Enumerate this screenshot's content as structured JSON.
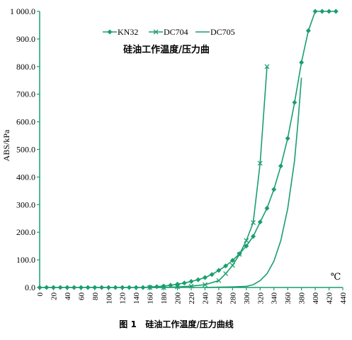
{
  "chart_data": {
    "type": "line",
    "title": "硅油工作温度/压力曲",
    "caption": "图 1   硅油工作温度/压力曲线",
    "ylabel": "ABS/kPa",
    "xunit": "℃",
    "xlim": [
      0,
      440
    ],
    "ylim": [
      0,
      1000
    ],
    "color": "#1a9e6e",
    "x_ticks": [
      0,
      20,
      40,
      60,
      80,
      100,
      120,
      140,
      160,
      180,
      200,
      220,
      240,
      260,
      280,
      300,
      320,
      340,
      360,
      380,
      400,
      420,
      440
    ],
    "y_ticks": [
      "0.0",
      "100.0",
      "200.0",
      "300.0",
      "400.0",
      "500.0",
      "600.0",
      "700.0",
      "800.0",
      "900.0",
      "1 000.0"
    ],
    "y_tick_values": [
      0,
      100,
      200,
      300,
      400,
      500,
      600,
      700,
      800,
      900,
      1000
    ],
    "legend_position": "top-center",
    "series": [
      {
        "name": "KN32",
        "marker": "diamond",
        "x": [
          0,
          10,
          20,
          30,
          40,
          50,
          60,
          70,
          80,
          90,
          100,
          110,
          120,
          130,
          140,
          150,
          160,
          170,
          180,
          190,
          200,
          210,
          220,
          230,
          240,
          250,
          260,
          270,
          280,
          290,
          300,
          310,
          320,
          330,
          340,
          350,
          360,
          370,
          380,
          390,
          400,
          410,
          420,
          430
        ],
        "y": [
          0,
          0,
          0,
          0,
          0,
          0,
          0,
          0,
          0,
          0,
          0,
          0,
          0,
          0,
          0,
          0,
          2,
          3,
          5,
          8,
          12,
          16,
          22,
          28,
          36,
          47,
          62,
          78,
          98,
          122,
          150,
          185,
          237,
          287,
          355,
          440,
          540,
          670,
          815,
          930,
          1000,
          1000,
          1000,
          1000
        ]
      },
      {
        "name": "DC704",
        "marker": "x",
        "x": [
          160,
          180,
          200,
          220,
          240,
          260,
          270,
          280,
          290,
          300,
          310,
          320,
          330
        ],
        "y": [
          0,
          0,
          2,
          5,
          10,
          25,
          50,
          80,
          120,
          170,
          235,
          450,
          800
        ]
      },
      {
        "name": "DC705",
        "marker": "none",
        "x": [
          240,
          260,
          280,
          300,
          310,
          320,
          330,
          340,
          350,
          360,
          370,
          375,
          380
        ],
        "y": [
          0,
          1,
          2,
          4,
          10,
          25,
          50,
          95,
          170,
          285,
          460,
          600,
          760
        ]
      }
    ]
  }
}
